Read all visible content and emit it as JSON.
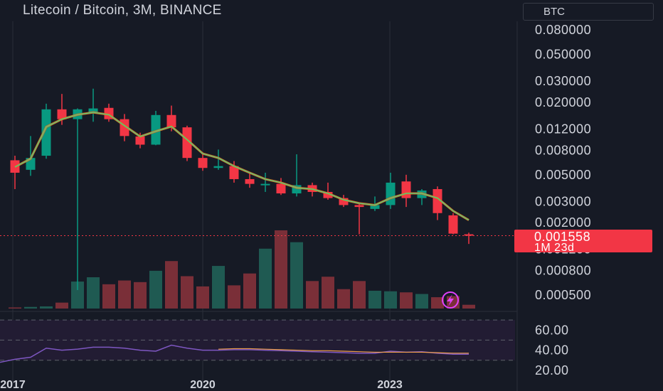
{
  "header": {
    "title": "Litecoin / Bitcoin, 3M, BINANCE",
    "currency_button": "BTC"
  },
  "price_tag": {
    "price": "0.001558",
    "countdown": "1M 23d"
  },
  "colors": {
    "background": "#161a25",
    "up": "#089981",
    "down": "#f23645",
    "up_volume": "#1f5a52",
    "down_volume": "#7a2f38",
    "ma_line": "#58c87a",
    "ma_line_outer": "#e66a1a",
    "rsi_line": "#7e57c2",
    "rsi_ma_line": "#f0a04b",
    "rsi_band": "#221c33",
    "axis_text": "#d1d4dc",
    "grid": "#2a2e39"
  },
  "icons": {
    "lightning": "lightning-icon"
  },
  "chart_data": [
    {
      "type": "candlestick",
      "name": "Litecoin / Bitcoin",
      "interval": "3M",
      "exchange": "BINANCE",
      "y_scale": "log",
      "ylim": [
        0.00035,
        0.1
      ],
      "y_ticks": [
        "0.080000",
        "0.050000",
        "0.030000",
        "0.020000",
        "0.012000",
        "0.008000",
        "0.005000",
        "0.003000",
        "0.002000",
        "0.001200",
        "0.000800",
        "0.000500"
      ],
      "x_tick_labels": [
        "2017",
        "2020",
        "2023"
      ],
      "current_price": 0.001558,
      "candles": [
        {
          "o": 0.0066,
          "h": 0.0072,
          "l": 0.0038,
          "c": 0.0052,
          "v": 0.2
        },
        {
          "o": 0.0055,
          "h": 0.0105,
          "l": 0.0049,
          "c": 0.0069,
          "v": 0.3
        },
        {
          "o": 0.0072,
          "h": 0.0195,
          "l": 0.0068,
          "c": 0.0175,
          "v": 0.4
        },
        {
          "o": 0.0175,
          "h": 0.0235,
          "l": 0.013,
          "c": 0.0145,
          "v": 1.1
        },
        {
          "o": 0.0145,
          "h": 0.0178,
          "l": 0.00055,
          "c": 0.0175,
          "v": 5.0
        },
        {
          "o": 0.0165,
          "h": 0.026,
          "l": 0.0138,
          "c": 0.0178,
          "v": 5.8
        },
        {
          "o": 0.018,
          "h": 0.0195,
          "l": 0.0138,
          "c": 0.0145,
          "v": 4.5
        },
        {
          "o": 0.0145,
          "h": 0.016,
          "l": 0.0095,
          "c": 0.0105,
          "v": 5.2
        },
        {
          "o": 0.0104,
          "h": 0.0112,
          "l": 0.0083,
          "c": 0.0089,
          "v": 4.9
        },
        {
          "o": 0.0089,
          "h": 0.017,
          "l": 0.0088,
          "c": 0.0157,
          "v": 7.0
        },
        {
          "o": 0.0157,
          "h": 0.0188,
          "l": 0.0115,
          "c": 0.0124,
          "v": 8.8
        },
        {
          "o": 0.0124,
          "h": 0.0128,
          "l": 0.0065,
          "c": 0.0069,
          "v": 6.0
        },
        {
          "o": 0.0069,
          "h": 0.0077,
          "l": 0.0054,
          "c": 0.0057,
          "v": 4.1
        },
        {
          "o": 0.0057,
          "h": 0.0081,
          "l": 0.0055,
          "c": 0.0059,
          "v": 7.9
        },
        {
          "o": 0.0059,
          "h": 0.0065,
          "l": 0.0043,
          "c": 0.0046,
          "v": 4.3
        },
        {
          "o": 0.0046,
          "h": 0.0051,
          "l": 0.0039,
          "c": 0.0042,
          "v": 6.5
        },
        {
          "o": 0.0042,
          "h": 0.0052,
          "l": 0.0036,
          "c": 0.0042,
          "v": 11.1
        },
        {
          "o": 0.0042,
          "h": 0.0047,
          "l": 0.0034,
          "c": 0.0035,
          "v": 14.5
        },
        {
          "o": 0.0035,
          "h": 0.0074,
          "l": 0.0033,
          "c": 0.0041,
          "v": 12.3
        },
        {
          "o": 0.0041,
          "h": 0.0043,
          "l": 0.0033,
          "c": 0.0036,
          "v": 5.1
        },
        {
          "o": 0.0036,
          "h": 0.0043,
          "l": 0.0031,
          "c": 0.0032,
          "v": 5.9
        },
        {
          "o": 0.0032,
          "h": 0.0034,
          "l": 0.0027,
          "c": 0.0028,
          "v": 3.6
        },
        {
          "o": 0.0028,
          "h": 0.0029,
          "l": 0.0016,
          "c": 0.0027,
          "v": 5.1
        },
        {
          "o": 0.0026,
          "h": 0.0033,
          "l": 0.0025,
          "c": 0.0028,
          "v": 3.3
        },
        {
          "o": 0.0028,
          "h": 0.0052,
          "l": 0.0026,
          "c": 0.0043,
          "v": 3.2
        },
        {
          "o": 0.0044,
          "h": 0.005,
          "l": 0.0027,
          "c": 0.0032,
          "v": 3.0
        },
        {
          "o": 0.0032,
          "h": 0.0038,
          "l": 0.0028,
          "c": 0.0037,
          "v": 2.7
        },
        {
          "o": 0.0038,
          "h": 0.004,
          "l": 0.0021,
          "c": 0.0024,
          "v": 2.1
        },
        {
          "o": 0.0023,
          "h": 0.0024,
          "l": 0.0016,
          "c": 0.00162,
          "v": 2.3
        },
        {
          "o": 0.0016,
          "h": 0.00165,
          "l": 0.00133,
          "c": 0.001558,
          "v": 0.7
        }
      ],
      "ma": [
        0.0058,
        0.0068,
        0.0125,
        0.0145,
        0.0158,
        0.0165,
        0.0158,
        0.0128,
        0.0104,
        0.0115,
        0.0126,
        0.0098,
        0.0075,
        0.0069,
        0.0059,
        0.0052,
        0.0046,
        0.0043,
        0.0039,
        0.0038,
        0.0035,
        0.0031,
        0.0029,
        0.0028,
        0.0032,
        0.0035,
        0.0035,
        0.0032,
        0.0025,
        0.0021
      ]
    },
    {
      "type": "line",
      "name": "RSI",
      "ylim": [
        15,
        75
      ],
      "y_ticks": [
        "60.00",
        "40.00",
        "20.00"
      ],
      "bands": [
        70,
        30
      ],
      "series": [
        {
          "values": [
            31,
            33,
            42,
            40,
            41,
            43,
            43,
            42,
            40,
            39,
            45,
            42,
            40,
            40,
            40.5,
            40.5,
            40,
            39.5,
            39,
            38.5,
            38,
            37.5,
            37,
            37,
            39,
            38,
            38.5,
            37,
            36,
            36
          ]
        },
        {
          "values": [
            null,
            null,
            null,
            null,
            null,
            null,
            null,
            null,
            null,
            null,
            null,
            null,
            null,
            41,
            41.5,
            41.5,
            41,
            40.5,
            40,
            39.5,
            39.5,
            39,
            38.5,
            38,
            38,
            38,
            38,
            37.5,
            37,
            37
          ]
        }
      ]
    }
  ]
}
